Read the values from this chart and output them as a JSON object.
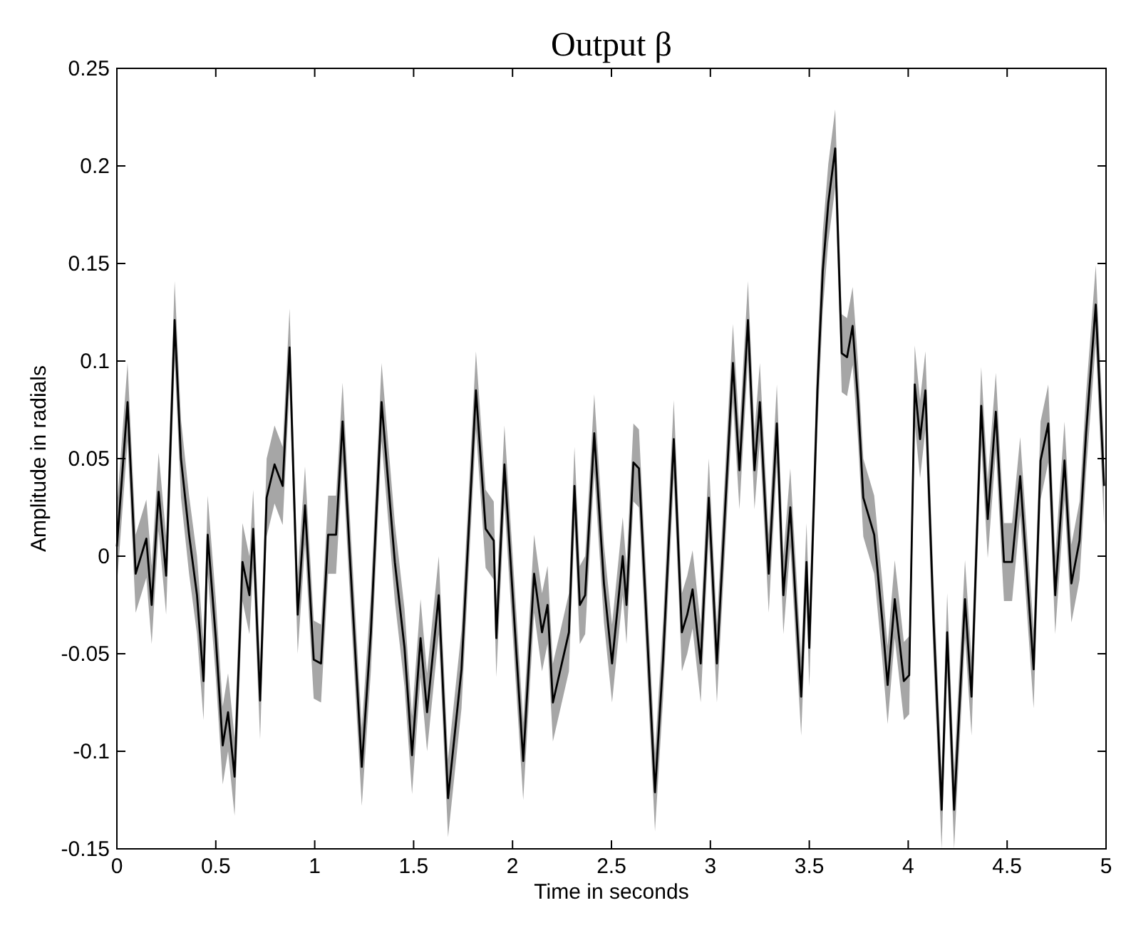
{
  "chart_data": {
    "type": "line",
    "title": "Output β",
    "xlabel": "Time in seconds",
    "ylabel": "Amplitude in radials",
    "xlim": [
      0,
      5
    ],
    "xticks": [
      0,
      0.5,
      1,
      1.5,
      2,
      2.5,
      3,
      3.5,
      4,
      4.5,
      5
    ],
    "ylim": [
      -0.15,
      0.25
    ],
    "yticks": [
      -0.15,
      -0.1,
      -0.05,
      0,
      0.05,
      0.1,
      0.15,
      0.2,
      0.25
    ],
    "x": [
      0,
      0.054,
      0.095,
      0.149,
      0.176,
      0.211,
      0.249,
      0.292,
      0.324,
      0.365,
      0.405,
      0.438,
      0.459,
      0.5,
      0.535,
      0.562,
      0.595,
      0.635,
      0.67,
      0.689,
      0.724,
      0.757,
      0.797,
      0.838,
      0.873,
      0.914,
      0.951,
      0.995,
      1.032,
      1.068,
      1.108,
      1.141,
      1.176,
      1.238,
      1.284,
      1.338,
      1.405,
      1.454,
      1.492,
      1.535,
      1.568,
      1.627,
      1.674,
      1.742,
      1.815,
      1.864,
      1.905,
      1.918,
      1.959,
      2.054,
      2.109,
      2.149,
      2.177,
      2.204,
      2.285,
      2.313,
      2.34,
      2.367,
      2.413,
      2.462,
      2.503,
      2.557,
      2.576,
      2.611,
      2.639,
      2.72,
      2.761,
      2.815,
      2.856,
      2.883,
      2.91,
      2.951,
      2.992,
      3.033,
      3.114,
      3.147,
      3.19,
      3.223,
      3.25,
      3.295,
      3.336,
      3.369,
      3.404,
      3.459,
      3.486,
      3.5,
      3.541,
      3.568,
      3.596,
      3.631,
      3.664,
      3.691,
      3.719,
      3.746,
      3.773,
      3.828,
      3.869,
      3.896,
      3.932,
      3.978,
      4.005,
      4.033,
      4.06,
      4.087,
      4.128,
      4.169,
      4.197,
      4.232,
      4.287,
      4.32,
      4.369,
      4.402,
      4.443,
      4.484,
      4.525,
      4.566,
      4.634,
      4.669,
      4.708,
      4.743,
      4.79,
      4.825,
      4.866,
      4.899,
      4.948,
      4.99
    ],
    "series": [
      {
        "color": "#000000",
        "values": [
          0.005,
          0.079,
          -0.009,
          0.009,
          -0.025,
          0.033,
          -0.01,
          0.121,
          0.05,
          0.011,
          -0.02,
          -0.064,
          0.011,
          -0.042,
          -0.097,
          -0.08,
          -0.113,
          -0.003,
          -0.02,
          0.014,
          -0.074,
          0.03,
          0.047,
          0.036,
          0.107,
          -0.03,
          0.026,
          -0.053,
          -0.055,
          0.011,
          0.011,
          0.069,
          0.003,
          -0.108,
          -0.039,
          0.079,
          -0.003,
          -0.047,
          -0.102,
          -0.042,
          -0.08,
          -0.02,
          -0.124,
          -0.058,
          0.085,
          0.014,
          0.008,
          -0.042,
          0.047,
          -0.105,
          -0.009,
          -0.039,
          -0.025,
          -0.075,
          -0.039,
          0.036,
          -0.025,
          -0.02,
          0.063,
          -0.014,
          -0.055,
          0,
          -0.025,
          0.048,
          0.045,
          -0.121,
          -0.053,
          0.06,
          -0.039,
          -0.03,
          -0.017,
          -0.055,
          0.03,
          -0.055,
          0.099,
          0.044,
          0.121,
          0.044,
          0.079,
          -0.009,
          0.068,
          -0.02,
          0.025,
          -0.072,
          -0.003,
          -0.047,
          0.085,
          0.146,
          0.181,
          0.209,
          0.104,
          0.102,
          0.118,
          0.08,
          0.03,
          0.011,
          -0.033,
          -0.066,
          -0.022,
          -0.064,
          -0.061,
          0.088,
          0.06,
          0.085,
          -0.033,
          -0.13,
          -0.039,
          -0.13,
          -0.022,
          -0.072,
          0.077,
          0.019,
          0.074,
          -0.003,
          -0.003,
          0.041,
          -0.058,
          0.049,
          0.068,
          -0.02,
          0.049,
          -0.014,
          0.008,
          0.063,
          0.129,
          0.036
        ],
        "lower": [
          -0.015,
          0.059,
          -0.029,
          -0.011,
          -0.045,
          0.013,
          -0.03,
          0.101,
          0.03,
          -0.009,
          -0.04,
          -0.084,
          -0.009,
          -0.062,
          -0.117,
          -0.1,
          -0.133,
          -0.023,
          -0.04,
          -0.006,
          -0.094,
          0.01,
          0.027,
          0.016,
          0.087,
          -0.05,
          0.006,
          -0.073,
          -0.075,
          -0.009,
          -0.009,
          0.049,
          -0.017,
          -0.128,
          -0.059,
          0.059,
          -0.023,
          -0.067,
          -0.122,
          -0.062,
          -0.1,
          -0.04,
          -0.144,
          -0.078,
          0.065,
          -0.006,
          -0.012,
          -0.062,
          0.027,
          -0.125,
          -0.029,
          -0.059,
          -0.045,
          -0.095,
          -0.059,
          0.016,
          -0.045,
          -0.04,
          0.043,
          -0.034,
          -0.075,
          -0.02,
          -0.045,
          0.028,
          0.025,
          -0.141,
          -0.073,
          0.04,
          -0.059,
          -0.05,
          -0.037,
          -0.075,
          0.01,
          -0.075,
          0.079,
          0.024,
          0.101,
          0.024,
          0.059,
          -0.029,
          0.048,
          -0.04,
          0.005,
          -0.092,
          -0.023,
          -0.067,
          0.065,
          0.126,
          0.161,
          0.189,
          0.084,
          0.082,
          0.098,
          0.06,
          0.01,
          -0.009,
          -0.053,
          -0.086,
          -0.042,
          -0.084,
          -0.081,
          0.068,
          0.04,
          0.065,
          -0.053,
          -0.15,
          -0.059,
          -0.15,
          -0.042,
          -0.092,
          0.057,
          -0.001,
          0.054,
          -0.023,
          -0.023,
          0.021,
          -0.078,
          0.029,
          0.048,
          -0.04,
          0.029,
          -0.034,
          -0.012,
          0.043,
          0.109,
          0.016
        ],
        "upper": [
          0.025,
          0.099,
          0.011,
          0.029,
          -0.005,
          0.053,
          0.01,
          0.141,
          0.07,
          0.031,
          0,
          -0.044,
          0.031,
          -0.022,
          -0.077,
          -0.06,
          -0.093,
          0.017,
          0,
          0.034,
          -0.054,
          0.05,
          0.067,
          0.056,
          0.127,
          -0.01,
          0.046,
          -0.033,
          -0.035,
          0.031,
          0.031,
          0.089,
          0.023,
          -0.088,
          -0.019,
          0.099,
          0.017,
          -0.027,
          -0.082,
          -0.022,
          -0.06,
          0,
          -0.104,
          -0.038,
          0.105,
          0.034,
          0.028,
          -0.022,
          0.067,
          -0.085,
          0.011,
          -0.019,
          -0.005,
          -0.055,
          -0.019,
          0.056,
          -0.005,
          0,
          0.083,
          0.006,
          -0.035,
          0.02,
          -0.005,
          0.068,
          0.065,
          -0.101,
          -0.033,
          0.08,
          -0.019,
          -0.01,
          0.003,
          -0.035,
          0.05,
          -0.035,
          0.119,
          0.064,
          0.141,
          0.064,
          0.099,
          0.011,
          0.088,
          0,
          0.045,
          -0.052,
          0.017,
          -0.027,
          0.105,
          0.166,
          0.201,
          0.229,
          0.124,
          0.122,
          0.138,
          0.1,
          0.05,
          0.031,
          -0.013,
          -0.046,
          -0.002,
          -0.044,
          -0.041,
          0.108,
          0.08,
          0.105,
          -0.013,
          -0.11,
          -0.019,
          -0.11,
          -0.002,
          -0.052,
          0.097,
          0.039,
          0.094,
          0.017,
          0.017,
          0.061,
          -0.038,
          0.069,
          0.088,
          0,
          0.069,
          0.006,
          0.028,
          0.083,
          0.149,
          0.056
        ]
      }
    ]
  }
}
